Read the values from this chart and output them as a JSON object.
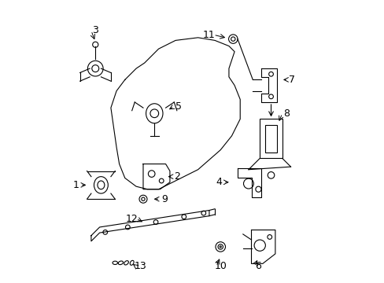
{
  "background_color": "#ffffff",
  "line_color": "#000000",
  "label_color": "#000000",
  "label_positions": {
    "1": [
      0.085,
      0.345,
      0.13,
      0.345
    ],
    "2": [
      0.445,
      0.375,
      0.405,
      0.375
    ],
    "3": [
      0.155,
      0.895,
      0.155,
      0.855
    ],
    "4": [
      0.595,
      0.355,
      0.638,
      0.355
    ],
    "5": [
      0.45,
      0.625,
      0.41,
      0.61
    ],
    "6": [
      0.735,
      0.055,
      0.735,
      0.085
    ],
    "7": [
      0.855,
      0.72,
      0.815,
      0.72
    ],
    "8": [
      0.835,
      0.6,
      0.805,
      0.565
    ],
    "9": [
      0.4,
      0.295,
      0.355,
      0.295
    ],
    "10": [
      0.6,
      0.055,
      0.6,
      0.09
    ],
    "11": [
      0.56,
      0.88,
      0.625,
      0.868
    ],
    "12": [
      0.285,
      0.225,
      0.33,
      0.21
    ],
    "13": [
      0.315,
      0.055,
      0.282,
      0.068
    ]
  }
}
